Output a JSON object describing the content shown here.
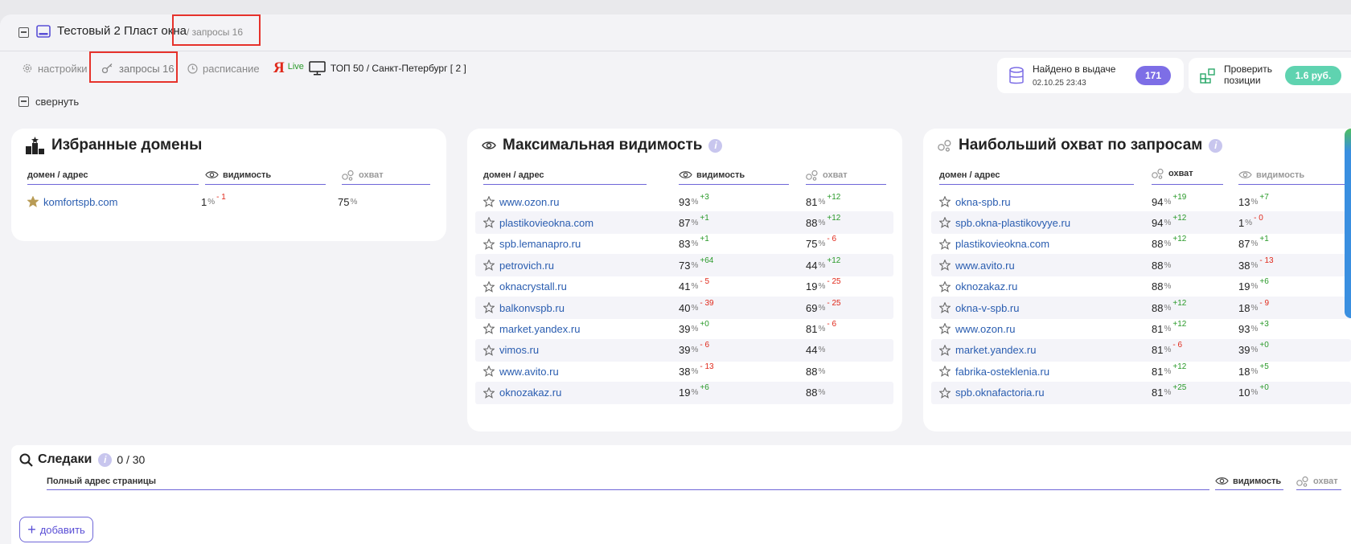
{
  "project": {
    "title": "Тестовый 2 Пласт окна",
    "crumb": "/ запросы 16"
  },
  "tabs": {
    "settings": "настройки",
    "queries": "запросы 16",
    "schedule": "расписание",
    "live": "Live",
    "region": "ТОП 50 / Санкт-Петербург [ 2 ]"
  },
  "found": {
    "label": "Найдено в выдаче",
    "date": "02.10.25 23:43",
    "count": "171"
  },
  "check": {
    "label_line1": "Проверить",
    "label_line2": "позиции",
    "price": "1.6 руб."
  },
  "collapse_label": "свернуть",
  "favorites": {
    "title": "Избранные домены",
    "col_domain": "домен / адрес",
    "col_visibility": "видимость",
    "col_coverage": "охват",
    "rows": [
      {
        "domain": "komfortspb.com",
        "v": "1",
        "vd": "- 1",
        "vdir": "down",
        "c": "75",
        "cd": "",
        "cdir": ""
      }
    ]
  },
  "max_visibility": {
    "title": "Максимальная видимость",
    "info": "i",
    "col_domain": "домен / адрес",
    "col_visibility": "видимость",
    "col_coverage": "охват",
    "rows": [
      {
        "domain": "www.ozon.ru",
        "v": "93",
        "vd": "+3",
        "vdir": "up",
        "c": "81",
        "cd": "+12",
        "cdir": "up"
      },
      {
        "domain": "plastikovieokna.com",
        "v": "87",
        "vd": "+1",
        "vdir": "up",
        "c": "88",
        "cd": "+12",
        "cdir": "up"
      },
      {
        "domain": "spb.lemanapro.ru",
        "v": "83",
        "vd": "+1",
        "vdir": "up",
        "c": "75",
        "cd": "- 6",
        "cdir": "down"
      },
      {
        "domain": "petrovich.ru",
        "v": "73",
        "vd": "+64",
        "vdir": "up",
        "c": "44",
        "cd": "+12",
        "cdir": "up"
      },
      {
        "domain": "oknacrystall.ru",
        "v": "41",
        "vd": "- 5",
        "vdir": "down",
        "c": "19",
        "cd": "- 25",
        "cdir": "down"
      },
      {
        "domain": "balkonvspb.ru",
        "v": "40",
        "vd": "- 39",
        "vdir": "down",
        "c": "69",
        "cd": "- 25",
        "cdir": "down"
      },
      {
        "domain": "market.yandex.ru",
        "v": "39",
        "vd": "+0",
        "vdir": "up",
        "c": "81",
        "cd": "- 6",
        "cdir": "down"
      },
      {
        "domain": "vimos.ru",
        "v": "39",
        "vd": "- 6",
        "vdir": "down",
        "c": "44",
        "cd": "",
        "cdir": ""
      },
      {
        "domain": "www.avito.ru",
        "v": "38",
        "vd": "- 13",
        "vdir": "down",
        "c": "88",
        "cd": "",
        "cdir": ""
      },
      {
        "domain": "oknozakaz.ru",
        "v": "19",
        "vd": "+6",
        "vdir": "up",
        "c": "88",
        "cd": "",
        "cdir": ""
      }
    ]
  },
  "max_coverage": {
    "title": "Наибольший охват по запросам",
    "info": "i",
    "col_domain": "домен / адрес",
    "col_coverage": "охват",
    "col_visibility": "видимость",
    "rows": [
      {
        "domain": "okna-spb.ru",
        "c": "94",
        "cd": "+19",
        "cdir": "up",
        "v": "13",
        "vd": "+7",
        "vdir": "up"
      },
      {
        "domain": "spb.okna-plastikovyye.ru",
        "c": "94",
        "cd": "+12",
        "cdir": "up",
        "v": "1",
        "vd": "- 0",
        "vdir": "down"
      },
      {
        "domain": "plastikovieokna.com",
        "c": "88",
        "cd": "+12",
        "cdir": "up",
        "v": "87",
        "vd": "+1",
        "vdir": "up"
      },
      {
        "domain": "www.avito.ru",
        "c": "88",
        "cd": "",
        "cdir": "",
        "v": "38",
        "vd": "- 13",
        "vdir": "down"
      },
      {
        "domain": "oknozakaz.ru",
        "c": "88",
        "cd": "",
        "cdir": "",
        "v": "19",
        "vd": "+6",
        "vdir": "up"
      },
      {
        "domain": "okna-v-spb.ru",
        "c": "88",
        "cd": "+12",
        "cdir": "up",
        "v": "18",
        "vd": "- 9",
        "vdir": "down"
      },
      {
        "domain": "www.ozon.ru",
        "c": "81",
        "cd": "+12",
        "cdir": "up",
        "v": "93",
        "vd": "+3",
        "vdir": "up"
      },
      {
        "domain": "market.yandex.ru",
        "c": "81",
        "cd": "- 6",
        "cdir": "down",
        "v": "39",
        "vd": "+0",
        "vdir": "up"
      },
      {
        "domain": "fabrika-osteklenia.ru",
        "c": "81",
        "cd": "+12",
        "cdir": "up",
        "v": "18",
        "vd": "+5",
        "vdir": "up"
      },
      {
        "domain": "spb.oknafactoria.ru",
        "c": "81",
        "cd": "+25",
        "cdir": "up",
        "v": "10",
        "vd": "+0",
        "vdir": "up"
      }
    ]
  },
  "tracking": {
    "title": "Следаки",
    "info": "i",
    "count": "0 / 30",
    "col_url": "Полный адрес страницы",
    "col_visibility": "видимость",
    "col_coverage": "охват",
    "add_label": "добавить"
  },
  "unit": "%",
  "colors": {
    "accent": "#6e66d8",
    "found_pill": "#7d6ee6",
    "price_pill": "#5fd3b0",
    "highlight": "#e6322b",
    "up": "#2a9a2a",
    "down": "#e0291b"
  }
}
